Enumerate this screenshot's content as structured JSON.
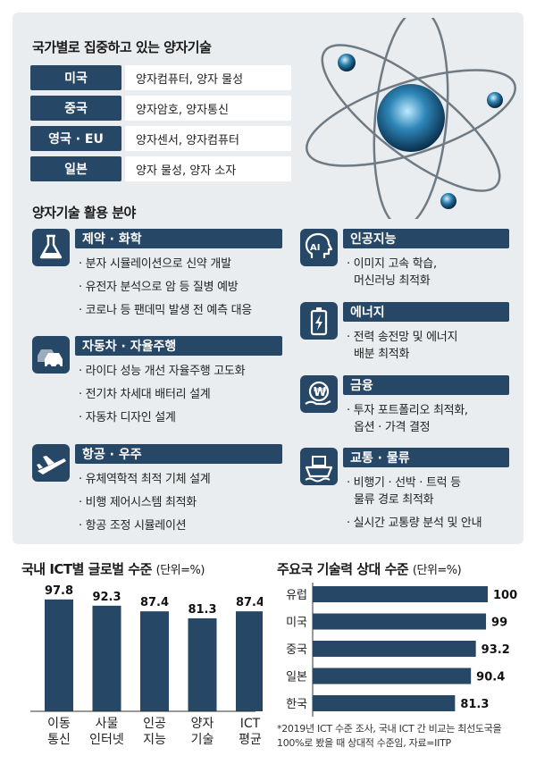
{
  "countries": {
    "title": "국가별로 집중하고 있는 양자기술",
    "rows": [
      {
        "name": "미국",
        "tech": "양자컴퓨터, 양자 물성"
      },
      {
        "name": "중국",
        "tech": "양자암호, 양자통신"
      },
      {
        "name": "영국 · EU",
        "tech": "양자센서, 양자컴퓨터"
      },
      {
        "name": "일본",
        "tech": "양자 물성, 양자 소자"
      }
    ]
  },
  "fields": {
    "title": "양자기술 활용 분야",
    "items": [
      {
        "name": "제약 · 화학",
        "icon": "flask-icon",
        "lines": [
          "· 분자 시뮬레이션으로 신약 개발",
          "· 유전자 분석으로 암 등 질병 예방",
          "· 코로나 등 팬데믹 발생 전 예측 대응"
        ]
      },
      {
        "name": "자동차 · 자율주행",
        "icon": "car-icon",
        "lines": [
          "· 라이다 성능 개선 자율주행 고도화",
          "· 전기차 차세대 배터리 설계",
          "· 자동차 디자인 설계"
        ]
      },
      {
        "name": "항공 · 우주",
        "icon": "airplane-icon",
        "lines": [
          "· 유체역학적 최적 기체 설계",
          "· 비행 제어시스템 최적화",
          "· 항공 조정 시뮬레이션"
        ]
      },
      {
        "name": "인공지능",
        "icon": "ai-head-icon",
        "lines": [
          "· 이미지 고속 학습,",
          "머신러닝 최적화"
        ]
      },
      {
        "name": "에너지",
        "icon": "battery-icon",
        "lines": [
          "· 전력 송전망 및 에너지",
          "배분 최적화"
        ]
      },
      {
        "name": "금융",
        "icon": "won-coin-icon",
        "lines": [
          "· 투자 포트폴리오 최적화,",
          "옵션 · 가격 결정"
        ]
      },
      {
        "name": "교통 · 물류",
        "icon": "ship-icon",
        "lines": [
          "· 비행기 · 선박 · 트럭 등",
          "물류 경로 최적화",
          "· 실시간 교통량 분석 및 안내"
        ]
      }
    ]
  },
  "chart_data": [
    {
      "type": "bar",
      "title": "국내 ICT별 글로벌 수준",
      "unit": "(단위=%)",
      "categories": [
        [
          "이동",
          "통신"
        ],
        [
          "사물",
          "인터넷"
        ],
        [
          "인공",
          "지능"
        ],
        [
          "양자",
          "기술"
        ],
        [
          "ICT",
          "평균"
        ]
      ],
      "values": [
        97.8,
        92.3,
        87.4,
        81.3,
        87.4
      ],
      "value_labels": [
        "97.8",
        "92.3",
        "87.4",
        "81.3",
        "87.4"
      ],
      "ylim": [
        0,
        100
      ],
      "color": "#274766"
    },
    {
      "type": "bar",
      "orientation": "horizontal",
      "title": "주요국 기술력 상대 수준",
      "unit": "(단위=%)",
      "categories": [
        "유럽",
        "미국",
        "중국",
        "일본",
        "한국"
      ],
      "values": [
        100,
        99,
        93.2,
        90.4,
        81.3
      ],
      "value_labels": [
        "100",
        "99",
        "93.2",
        "90.4",
        "81.3"
      ],
      "xlim": [
        0,
        100
      ],
      "color": "#274766"
    }
  ],
  "footnote": "*2019년 ICT 수준 조사, 국내 ICT 간 비교는 최선도국을 100%로 봤을 때 상대적 수준임, 자료=IITP"
}
